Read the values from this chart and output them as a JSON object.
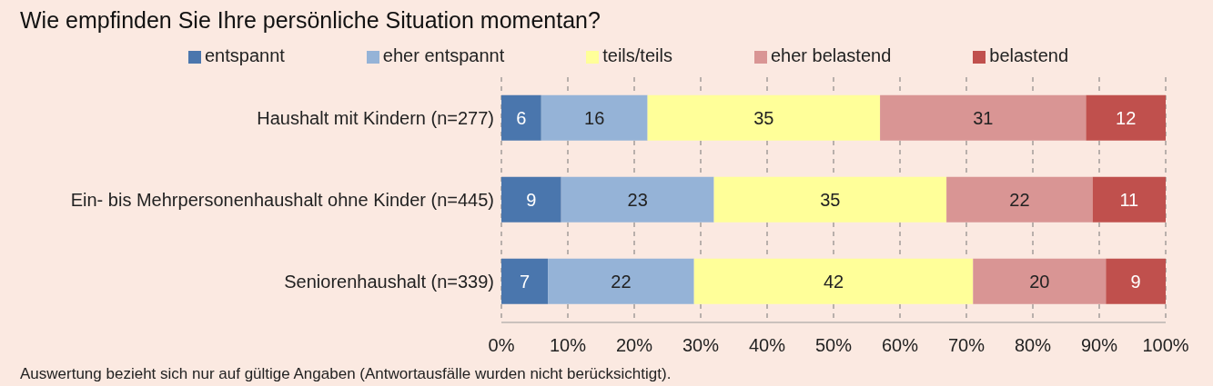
{
  "chart_data": {
    "type": "bar",
    "orientation": "horizontal",
    "stacked": true,
    "title": "Wie empfinden Sie Ihre persönliche Situation momentan?",
    "categories": [
      "Haushalt mit Kindern (n=277)",
      "Ein- bis Mehrpersonenhaushalt ohne Kinder (n=445)",
      "Seniorenhaushalt (n=339)"
    ],
    "series": [
      {
        "name": "entspannt",
        "color": "#4a76ad",
        "values": [
          6,
          9,
          7
        ]
      },
      {
        "name": "eher entspannt",
        "color": "#95b3d7",
        "values": [
          16,
          23,
          22
        ]
      },
      {
        "name": "teils/teils",
        "color": "#ffff99",
        "values": [
          35,
          35,
          42
        ]
      },
      {
        "name": "eher belastend",
        "color": "#d99594",
        "values": [
          31,
          22,
          20
        ]
      },
      {
        "name": "belastend",
        "color": "#c0504d",
        "values": [
          12,
          11,
          9
        ]
      }
    ],
    "xlim": [
      0,
      100
    ],
    "xticks": [
      {
        "value": 0,
        "label": "0%"
      },
      {
        "value": 10,
        "label": "10%"
      },
      {
        "value": 20,
        "label": "20%"
      },
      {
        "value": 30,
        "label": "30%"
      },
      {
        "value": 40,
        "label": "40%"
      },
      {
        "value": 50,
        "label": "50%"
      },
      {
        "value": 60,
        "label": "60%"
      },
      {
        "value": 70,
        "label": "70%"
      },
      {
        "value": 80,
        "label": "80%"
      },
      {
        "value": 90,
        "label": "90%"
      },
      {
        "value": 100,
        "label": "100%"
      }
    ],
    "grid": "x",
    "legend": "top",
    "data_labels": true,
    "annotations": [
      "Auswertung bezieht sich nur auf gültige Angaben (Antwortausfälle wurden nicht berücksichtigt)."
    ]
  }
}
